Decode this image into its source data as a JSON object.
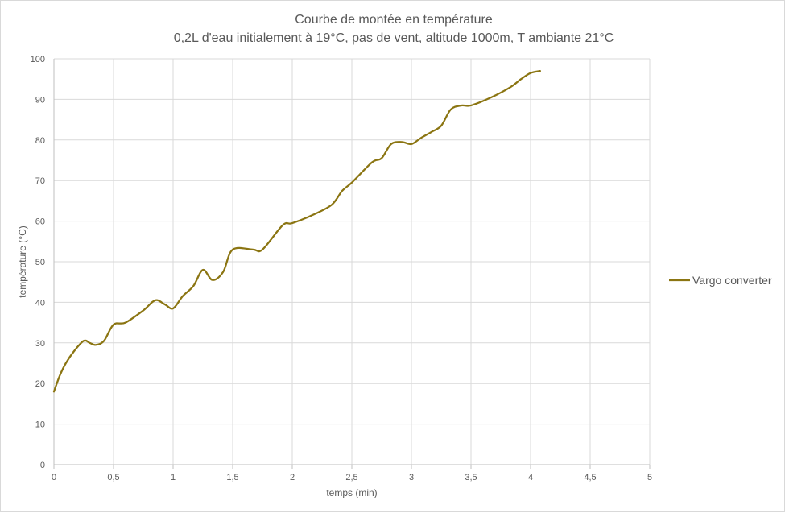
{
  "chart_data": {
    "type": "line",
    "title": "Courbe de montée en température",
    "subtitle": "0,2L d'eau initialement à 19°C, pas de vent, altitude 1000m, T ambiante 21°C",
    "xlabel": "temps (min)",
    "ylabel": "température (°C)",
    "xlim": [
      0,
      5
    ],
    "ylim": [
      0,
      100
    ],
    "x_ticks": [
      0,
      0.5,
      1,
      1.5,
      2,
      2.5,
      3,
      3.5,
      4,
      4.5,
      5
    ],
    "x_tick_labels": [
      "0",
      "0,5",
      "1",
      "1,5",
      "2",
      "2,5",
      "3",
      "3,5",
      "4",
      "4,5",
      "5"
    ],
    "y_ticks": [
      0,
      10,
      20,
      30,
      40,
      50,
      60,
      70,
      80,
      90,
      100
    ],
    "y_tick_labels": [
      "0",
      "10",
      "20",
      "30",
      "40",
      "50",
      "60",
      "70",
      "80",
      "90",
      "100"
    ],
    "grid": true,
    "legend_position": "right",
    "series": [
      {
        "name": "Vargo converter",
        "color": "#8B7512",
        "x": [
          0,
          0.05,
          0.1,
          0.17,
          0.25,
          0.3,
          0.35,
          0.42,
          0.5,
          0.6,
          0.75,
          0.85,
          0.93,
          1.0,
          1.08,
          1.17,
          1.25,
          1.33,
          1.42,
          1.5,
          1.67,
          1.75,
          1.92,
          2.0,
          2.17,
          2.33,
          2.42,
          2.5,
          2.67,
          2.75,
          2.83,
          2.92,
          3.0,
          3.08,
          3.17,
          3.25,
          3.33,
          3.42,
          3.5,
          3.67,
          3.83,
          3.92,
          4.0,
          4.08
        ],
        "y": [
          18,
          22,
          25,
          28,
          30.5,
          30,
          29.5,
          30.5,
          34.5,
          35,
          38,
          40.5,
          39.5,
          38.5,
          41.5,
          44,
          48,
          45.5,
          47.5,
          53,
          53,
          53,
          59,
          59.5,
          61.5,
          64,
          67.5,
          69.5,
          74.5,
          75.5,
          79,
          79.5,
          79,
          80.5,
          82,
          83.5,
          87.5,
          88.5,
          88.5,
          90.5,
          93,
          95,
          96.5,
          97
        ]
      }
    ]
  }
}
